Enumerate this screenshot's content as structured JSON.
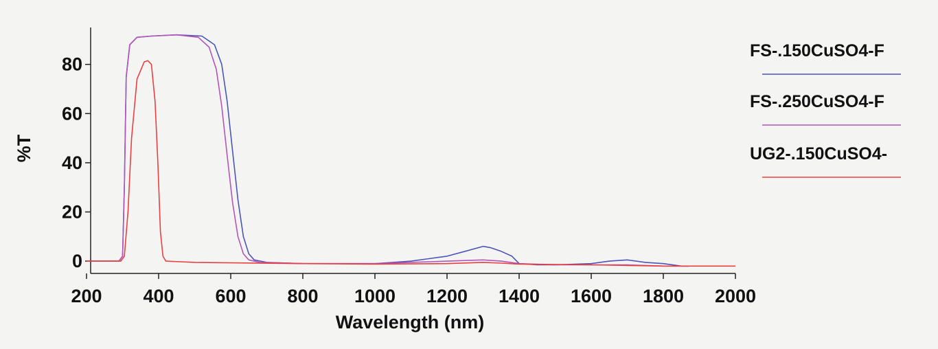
{
  "chart_data": {
    "type": "line",
    "xlabel": "Wavelength (nm)",
    "ylabel": "%T",
    "xlim": [
      200,
      2000
    ],
    "ylim": [
      -5,
      95
    ],
    "xticks": [
      200,
      400,
      600,
      800,
      1000,
      1200,
      1400,
      1600,
      1800,
      2000
    ],
    "yticks": [
      0,
      20,
      40,
      60,
      80
    ],
    "grid": false,
    "legend_position": "right",
    "series": [
      {
        "name": "FS-.150CuSO4-F",
        "color": "#4a55b8",
        "points": [
          [
            200,
            0
          ],
          [
            290,
            0
          ],
          [
            300,
            2
          ],
          [
            305,
            30
          ],
          [
            310,
            75
          ],
          [
            320,
            88
          ],
          [
            340,
            91
          ],
          [
            380,
            91.5
          ],
          [
            450,
            92
          ],
          [
            520,
            91.5
          ],
          [
            555,
            88
          ],
          [
            575,
            80
          ],
          [
            590,
            65
          ],
          [
            605,
            45
          ],
          [
            620,
            25
          ],
          [
            635,
            10
          ],
          [
            650,
            3
          ],
          [
            665,
            0.5
          ],
          [
            700,
            -0.5
          ],
          [
            800,
            -1
          ],
          [
            900,
            -1
          ],
          [
            1000,
            -1
          ],
          [
            1050,
            -0.5
          ],
          [
            1100,
            0
          ],
          [
            1150,
            1
          ],
          [
            1200,
            2
          ],
          [
            1250,
            4
          ],
          [
            1300,
            6
          ],
          [
            1320,
            5.5
          ],
          [
            1350,
            4
          ],
          [
            1380,
            2
          ],
          [
            1400,
            -1
          ],
          [
            1450,
            -1.5
          ],
          [
            1500,
            -1.5
          ],
          [
            1600,
            -1
          ],
          [
            1650,
            0
          ],
          [
            1700,
            0.5
          ],
          [
            1750,
            -0.5
          ],
          [
            1800,
            -1
          ],
          [
            1850,
            -2
          ],
          [
            1870,
            -2
          ]
        ]
      },
      {
        "name": "FS-.250CuSO4-F",
        "color": "#b254b8",
        "points": [
          [
            200,
            0
          ],
          [
            290,
            0
          ],
          [
            300,
            2
          ],
          [
            305,
            30
          ],
          [
            310,
            75
          ],
          [
            320,
            88
          ],
          [
            340,
            91
          ],
          [
            380,
            91.5
          ],
          [
            450,
            92
          ],
          [
            510,
            91
          ],
          [
            540,
            87
          ],
          [
            560,
            78
          ],
          [
            575,
            63
          ],
          [
            590,
            43
          ],
          [
            605,
            24
          ],
          [
            620,
            10
          ],
          [
            635,
            3
          ],
          [
            650,
            0.5
          ],
          [
            680,
            -0.5
          ],
          [
            800,
            -1
          ],
          [
            1000,
            -1
          ],
          [
            1100,
            -0.5
          ],
          [
            1200,
            0
          ],
          [
            1300,
            0.5
          ],
          [
            1350,
            0
          ],
          [
            1400,
            -1
          ],
          [
            1500,
            -1.5
          ],
          [
            1600,
            -1.5
          ],
          [
            1700,
            -1.5
          ],
          [
            1800,
            -2
          ],
          [
            1870,
            -2
          ]
        ]
      },
      {
        "name": "UG2-.150CuSO4-",
        "color": "#e84040",
        "points": [
          [
            200,
            0
          ],
          [
            295,
            0
          ],
          [
            305,
            2
          ],
          [
            315,
            20
          ],
          [
            325,
            50
          ],
          [
            340,
            74
          ],
          [
            360,
            81
          ],
          [
            370,
            81.5
          ],
          [
            380,
            80
          ],
          [
            390,
            65
          ],
          [
            398,
            40
          ],
          [
            405,
            12
          ],
          [
            412,
            2
          ],
          [
            420,
            0
          ],
          [
            500,
            -0.5
          ],
          [
            800,
            -1
          ],
          [
            1000,
            -1.2
          ],
          [
            1200,
            -1
          ],
          [
            1300,
            -0.5
          ],
          [
            1350,
            -0.8
          ],
          [
            1400,
            -1.2
          ],
          [
            1600,
            -1.5
          ],
          [
            1800,
            -2
          ],
          [
            2000,
            -2
          ]
        ]
      }
    ]
  }
}
